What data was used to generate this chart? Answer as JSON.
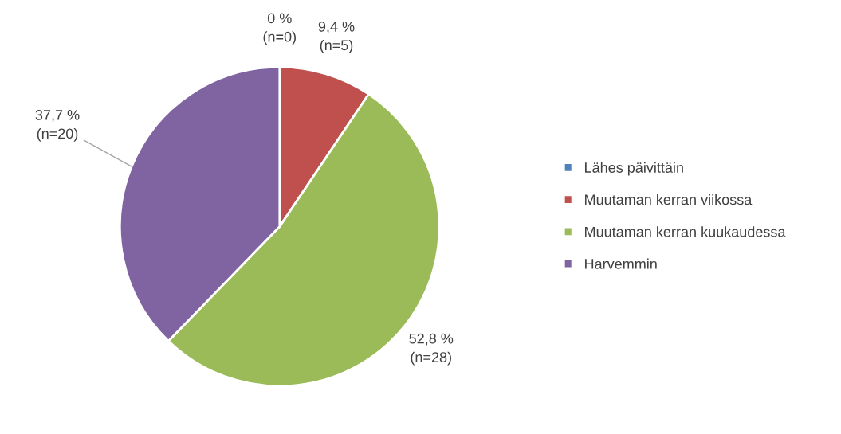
{
  "chart_data": {
    "type": "pie",
    "categories": [
      "Lähes päivittäin",
      "Muutaman kerran viikossa",
      "Muutaman kerran kuukaudessa",
      "Harvemmin"
    ],
    "values": [
      0,
      9.4,
      52.8,
      37.7
    ],
    "colors": [
      "#4f81bd",
      "#c0504d",
      "#9bbb59",
      "#8064a2"
    ],
    "value_labels": [
      "0 %\n(n=0)",
      "9,4 %\n(n=5)",
      "52,8 %\n(n=28)",
      "37,7 %\n(n=20)"
    ],
    "legend": "right"
  }
}
